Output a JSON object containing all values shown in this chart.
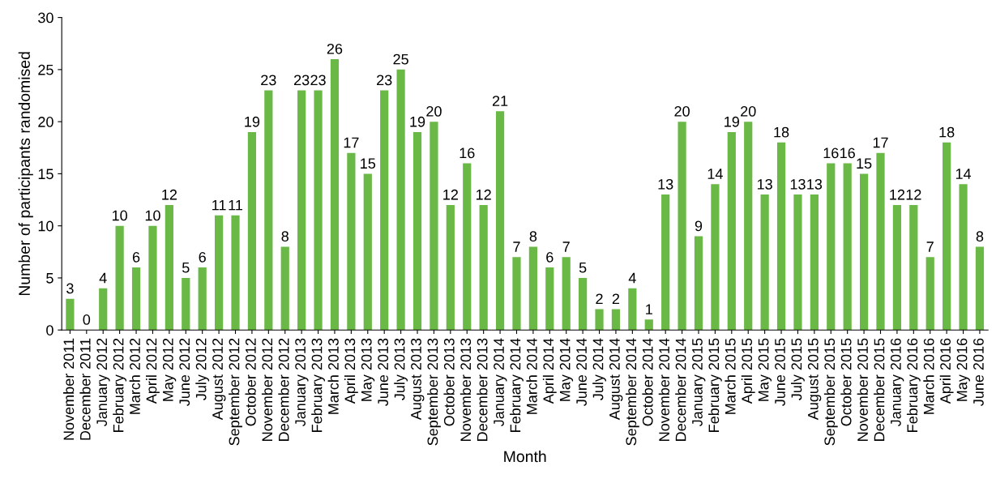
{
  "chart_data": {
    "type": "bar",
    "xlabel": "Month",
    "ylabel": "Number of participants randomised",
    "categories": [
      "November 2011",
      "December 2011",
      "January 2012",
      "February 2012",
      "March 2012",
      "April 2012",
      "May 2012",
      "June 2012",
      "July 2012",
      "August 2012",
      "September 2012",
      "October 2012",
      "November 2012",
      "December 2012",
      "January 2013",
      "February 2013",
      "March 2013",
      "April 2013",
      "May 2013",
      "June 2013",
      "July 2013",
      "August 2013",
      "September 2013",
      "October 2013",
      "November 2013",
      "December 2013",
      "January 2014",
      "February 2014",
      "March 2014",
      "April 2014",
      "May 2014",
      "June 2014",
      "July 2014",
      "August 2014",
      "September 2014",
      "October 2014",
      "November 2014",
      "December 2014",
      "January 2015",
      "February 2015",
      "March 2015",
      "April 2015",
      "May 2015",
      "June 2015",
      "July 2015",
      "August 2015",
      "September 2015",
      "October 2015",
      "November 2015",
      "December 2015",
      "January 2016",
      "February 2016",
      "March 2016",
      "April 2016",
      "May 2016",
      "June 2016"
    ],
    "values": [
      3,
      0,
      4,
      10,
      6,
      10,
      12,
      5,
      6,
      11,
      11,
      19,
      23,
      8,
      23,
      23,
      26,
      17,
      15,
      23,
      25,
      19,
      20,
      12,
      16,
      12,
      21,
      7,
      8,
      6,
      7,
      5,
      2,
      2,
      4,
      1,
      13,
      20,
      9,
      14,
      19,
      20,
      13,
      18,
      13,
      13,
      16,
      16,
      15,
      17,
      12,
      12,
      7,
      18,
      14,
      8
    ],
    "color": "#6ab845",
    "ylim": [
      0,
      30
    ],
    "yticks": [
      0,
      5,
      10,
      15,
      20,
      25,
      30
    ],
    "data_labels": true,
    "grid": false,
    "legend": false
  }
}
